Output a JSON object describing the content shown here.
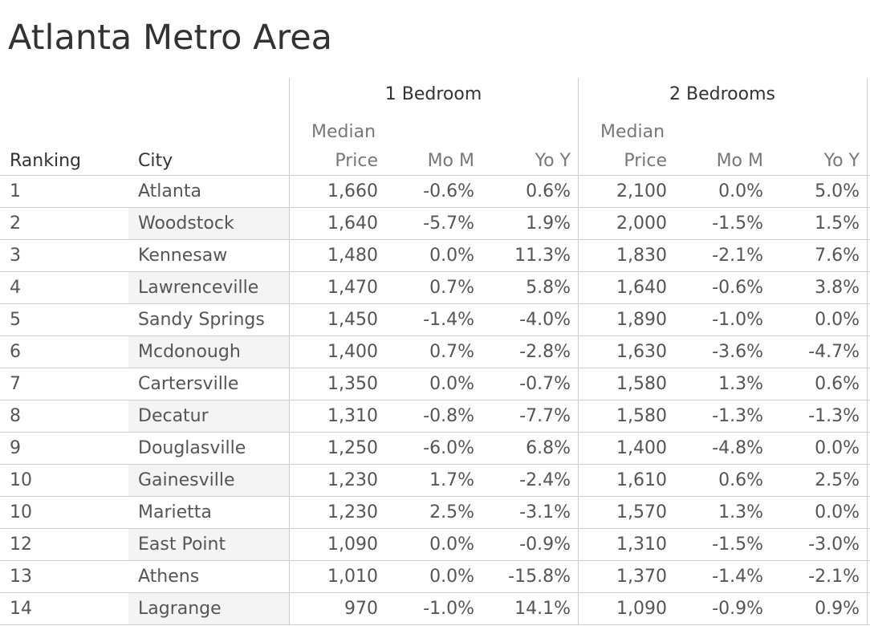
{
  "title": "Atlanta Metro Area",
  "chart_data": {
    "type": "table",
    "title": "Atlanta Metro Area",
    "column_groups": [
      "1 Bedroom",
      "2 Bedrooms"
    ],
    "headers": {
      "ranking": "Ranking",
      "city": "City",
      "median_top": "Median",
      "median_bottom": "Price",
      "mom": "Mo M",
      "yoy": "Yo Y"
    },
    "rows": [
      {
        "rank": "1",
        "city": "Atlanta",
        "b1_price": "1,660",
        "b1_mom": "-0.6%",
        "b1_yoy": "0.6%",
        "b2_price": "2,100",
        "b2_mom": "0.0%",
        "b2_yoy": "5.0%"
      },
      {
        "rank": "2",
        "city": "Woodstock",
        "b1_price": "1,640",
        "b1_mom": "-5.7%",
        "b1_yoy": "1.9%",
        "b2_price": "2,000",
        "b2_mom": "-1.5%",
        "b2_yoy": "1.5%"
      },
      {
        "rank": "3",
        "city": "Kennesaw",
        "b1_price": "1,480",
        "b1_mom": "0.0%",
        "b1_yoy": "11.3%",
        "b2_price": "1,830",
        "b2_mom": "-2.1%",
        "b2_yoy": "7.6%"
      },
      {
        "rank": "4",
        "city": "Lawrenceville",
        "b1_price": "1,470",
        "b1_mom": "0.7%",
        "b1_yoy": "5.8%",
        "b2_price": "1,640",
        "b2_mom": "-0.6%",
        "b2_yoy": "3.8%"
      },
      {
        "rank": "5",
        "city": "Sandy Springs",
        "b1_price": "1,450",
        "b1_mom": "-1.4%",
        "b1_yoy": "-4.0%",
        "b2_price": "1,890",
        "b2_mom": "-1.0%",
        "b2_yoy": "0.0%"
      },
      {
        "rank": "6",
        "city": "Mcdonough",
        "b1_price": "1,400",
        "b1_mom": "0.7%",
        "b1_yoy": "-2.8%",
        "b2_price": "1,630",
        "b2_mom": "-3.6%",
        "b2_yoy": "-4.7%"
      },
      {
        "rank": "7",
        "city": "Cartersville",
        "b1_price": "1,350",
        "b1_mom": "0.0%",
        "b1_yoy": "-0.7%",
        "b2_price": "1,580",
        "b2_mom": "1.3%",
        "b2_yoy": "0.6%"
      },
      {
        "rank": "8",
        "city": "Decatur",
        "b1_price": "1,310",
        "b1_mom": "-0.8%",
        "b1_yoy": "-7.7%",
        "b2_price": "1,580",
        "b2_mom": "-1.3%",
        "b2_yoy": "-1.3%"
      },
      {
        "rank": "9",
        "city": "Douglasville",
        "b1_price": "1,250",
        "b1_mom": "-6.0%",
        "b1_yoy": "6.8%",
        "b2_price": "1,400",
        "b2_mom": "-4.8%",
        "b2_yoy": "0.0%"
      },
      {
        "rank": "10",
        "city": "Gainesville",
        "b1_price": "1,230",
        "b1_mom": "1.7%",
        "b1_yoy": "-2.4%",
        "b2_price": "1,610",
        "b2_mom": "0.6%",
        "b2_yoy": "2.5%"
      },
      {
        "rank": "10",
        "city": "Marietta",
        "b1_price": "1,230",
        "b1_mom": "2.5%",
        "b1_yoy": "-3.1%",
        "b2_price": "1,570",
        "b2_mom": "1.3%",
        "b2_yoy": "0.0%"
      },
      {
        "rank": "12",
        "city": "East Point",
        "b1_price": "1,090",
        "b1_mom": "0.0%",
        "b1_yoy": "-0.9%",
        "b2_price": "1,310",
        "b2_mom": "-1.5%",
        "b2_yoy": "-3.0%"
      },
      {
        "rank": "13",
        "city": "Athens",
        "b1_price": "1,010",
        "b1_mom": "0.0%",
        "b1_yoy": "-15.8%",
        "b2_price": "1,370",
        "b2_mom": "-1.4%",
        "b2_yoy": "-2.1%"
      },
      {
        "rank": "14",
        "city": "Lagrange",
        "b1_price": "970",
        "b1_mom": "-1.0%",
        "b1_yoy": "14.1%",
        "b2_price": "1,090",
        "b2_mom": "-0.9%",
        "b2_yoy": "0.9%"
      }
    ]
  }
}
